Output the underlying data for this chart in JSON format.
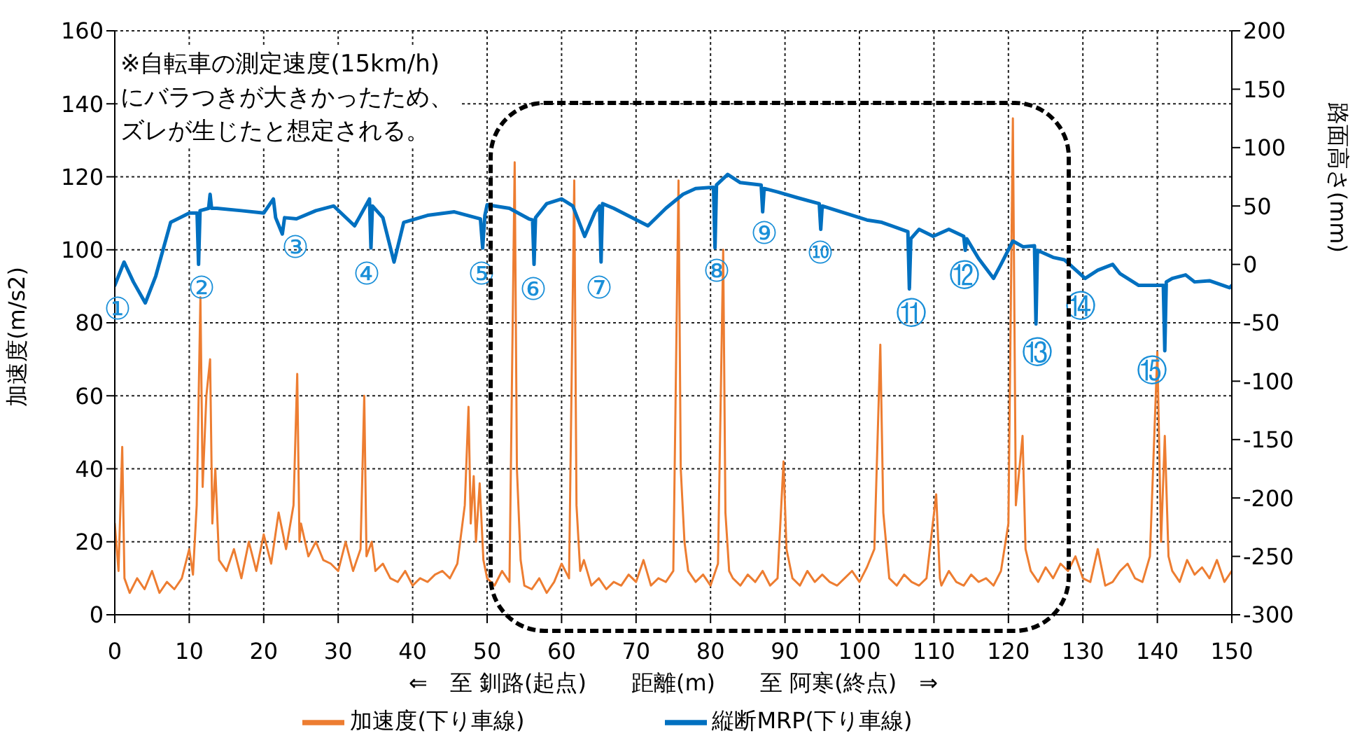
{
  "chart_data": {
    "type": "line",
    "xlabel": "⇐　至 釧路(起点)　　距離(m)　　至 阿寒(終点)　⇒",
    "ylabel": "加速度(m/s2)",
    "y2label": "路面高さ(mm)",
    "xlim": [
      0,
      150
    ],
    "xticks": [
      0,
      10,
      20,
      30,
      40,
      50,
      60,
      70,
      80,
      90,
      100,
      110,
      120,
      130,
      140,
      150
    ],
    "ylim": [
      0,
      160
    ],
    "yticks": [
      0,
      20,
      40,
      60,
      80,
      100,
      120,
      140,
      160
    ],
    "y2lim": [
      -300,
      200
    ],
    "y2ticks": [
      -300,
      -250,
      -200,
      -150,
      -100,
      -50,
      0,
      50,
      100,
      150,
      200
    ],
    "grid": true,
    "legend": "bottom",
    "marker": "none",
    "line_style": "solid",
    "series": [
      {
        "name": "加速度(下り車線)",
        "color": "#ed7d31",
        "x": [
          0,
          0.5,
          1,
          1.3,
          2,
          3,
          4,
          5,
          6,
          7,
          8,
          9,
          10,
          10.5,
          11,
          11.5,
          11.8,
          12.3,
          12.8,
          13.1,
          13.5,
          14,
          15,
          16,
          17,
          18,
          19,
          20,
          21,
          22,
          23,
          24,
          24.5,
          24.8,
          25,
          26,
          27,
          28,
          29,
          30,
          31,
          32,
          33,
          33.5,
          33.8,
          34.5,
          35,
          36,
          37,
          38,
          39,
          40,
          41,
          42,
          43,
          44,
          45,
          46,
          47,
          47.5,
          47.8,
          48.2,
          48.5,
          49,
          49.5,
          50,
          51,
          52,
          53,
          53.7,
          54,
          54.5,
          55,
          56,
          57,
          58,
          59,
          60,
          61,
          61.7,
          62,
          62.5,
          63,
          64,
          65,
          66,
          67,
          68,
          69,
          70,
          71,
          72,
          73,
          74,
          75,
          75.7,
          76,
          76.5,
          77,
          78,
          79,
          80,
          81,
          81.7,
          82,
          82.5,
          83,
          84,
          85,
          86,
          87,
          88,
          89,
          89.8,
          90.2,
          91,
          92,
          93,
          94,
          95,
          96,
          97,
          98,
          99,
          100,
          101,
          102,
          102.8,
          103.2,
          104,
          105,
          106,
          107,
          108,
          109,
          110.3,
          110.8,
          111,
          112,
          113,
          114,
          115,
          116,
          117,
          118,
          119,
          120,
          120.6,
          121,
          121.9,
          122.3,
          123,
          124,
          125,
          126,
          127,
          128,
          129,
          130,
          131,
          132,
          133,
          134,
          135,
          136,
          137,
          138,
          139,
          140,
          140.5,
          141,
          141.5,
          142,
          143,
          144,
          145,
          146,
          147,
          148,
          149,
          150
        ],
        "values": [
          25,
          12,
          46,
          10,
          6,
          10,
          7,
          12,
          6,
          9,
          7,
          10,
          18,
          11,
          30,
          87,
          35,
          60,
          70,
          25,
          40,
          15,
          12,
          18,
          10,
          20,
          12,
          22,
          14,
          28,
          18,
          30,
          66,
          20,
          25,
          16,
          20,
          15,
          14,
          12,
          20,
          12,
          18,
          60,
          16,
          20,
          12,
          14,
          10,
          9,
          12,
          8,
          10,
          9,
          11,
          12,
          10,
          14,
          30,
          57,
          25,
          38,
          20,
          36,
          15,
          10,
          8,
          12,
          9,
          124,
          40,
          15,
          8,
          7,
          10,
          6,
          9,
          14,
          10,
          119,
          30,
          12,
          15,
          8,
          10,
          7,
          9,
          8,
          11,
          9,
          15,
          8,
          10,
          9,
          12,
          119,
          40,
          20,
          12,
          9,
          11,
          8,
          14,
          100,
          28,
          12,
          10,
          8,
          11,
          9,
          12,
          8,
          10,
          42,
          18,
          10,
          8,
          12,
          9,
          11,
          9,
          8,
          10,
          12,
          9,
          13,
          18,
          74,
          28,
          10,
          8,
          11,
          9,
          8,
          10,
          33,
          10,
          8,
          12,
          9,
          8,
          11,
          9,
          10,
          8,
          12,
          25,
          136,
          30,
          49,
          18,
          12,
          9,
          13,
          10,
          14,
          12,
          16,
          10,
          9,
          18,
          8,
          9,
          12,
          14,
          10,
          9,
          16,
          72,
          20,
          49,
          16,
          12,
          9,
          15,
          11,
          13,
          10,
          15,
          9,
          12
        ]
      },
      {
        "name": "縦断MRP(下り車線)",
        "color": "#0070c0",
        "axis": "y2",
        "x": [
          0,
          1.25,
          2.5,
          4.1,
          5.5,
          7.5,
          10,
          11.05,
          11.25,
          11.45,
          12.6,
          12.8,
          13,
          13.7,
          17,
          20,
          21.3,
          21.6,
          22.5,
          22.8,
          24.4,
          27,
          29.4,
          32.2,
          34.2,
          34.4,
          34.6,
          36,
          37.5,
          38.8,
          42,
          45.6,
          49.1,
          49.4,
          49.7,
          50,
          53,
          55.6,
          56.1,
          56.3,
          56.5,
          58,
          60,
          61.5,
          63.1,
          64.5,
          65.1,
          65.3,
          65.5,
          67,
          71.6,
          74,
          76.3,
          78,
          80.4,
          80.6,
          80.8,
          82.3,
          84,
          86.8,
          87,
          87.2,
          89,
          91.7,
          94.6,
          94.8,
          95,
          98,
          101,
          103,
          106.5,
          106.7,
          106.9,
          108,
          109.9,
          112,
          114,
          114.2,
          114.4,
          116,
          118,
          119,
          120.6,
          122,
          123.5,
          123.7,
          123.9,
          126,
          127.5,
          130.3,
          132,
          134,
          135,
          137.5,
          140.8,
          141,
          141.2,
          142,
          143.8,
          145,
          147,
          149.7,
          150
        ],
        "values": [
          -18,
          2,
          -15,
          -33,
          -10,
          36,
          44,
          44,
          0,
          46,
          48,
          60,
          48,
          48,
          46,
          44,
          56,
          40,
          26,
          40,
          39,
          46,
          50,
          33,
          56,
          14,
          50,
          40,
          2,
          36,
          42,
          45,
          39,
          14,
          42,
          51,
          48,
          39,
          38,
          0,
          40,
          52,
          56,
          50,
          24,
          45,
          50,
          2,
          52,
          48,
          33,
          48,
          60,
          65,
          66,
          14,
          68,
          77,
          70,
          68,
          45,
          65,
          62,
          57,
          52,
          30,
          50,
          44,
          38,
          36,
          28,
          -21,
          22,
          30,
          24,
          30,
          24,
          12,
          22,
          5,
          -12,
          0,
          20,
          15,
          16,
          -51,
          12,
          6,
          4,
          -12,
          -5,
          0,
          -8,
          -18,
          -18,
          -74,
          -15,
          -12,
          -9,
          -15,
          -14,
          -20,
          -18
        ]
      }
    ],
    "annotations": [
      "※自転車の測定速度(15km/h)にバラつきが大きかったため、ズレが生じたと想定される。",
      "①",
      "②",
      "③",
      "④",
      "⑤",
      "⑥",
      "⑦",
      "⑧",
      "⑨",
      "⑩",
      "⑪",
      "⑫",
      "⑬",
      "⑭",
      "⑮"
    ]
  }
}
